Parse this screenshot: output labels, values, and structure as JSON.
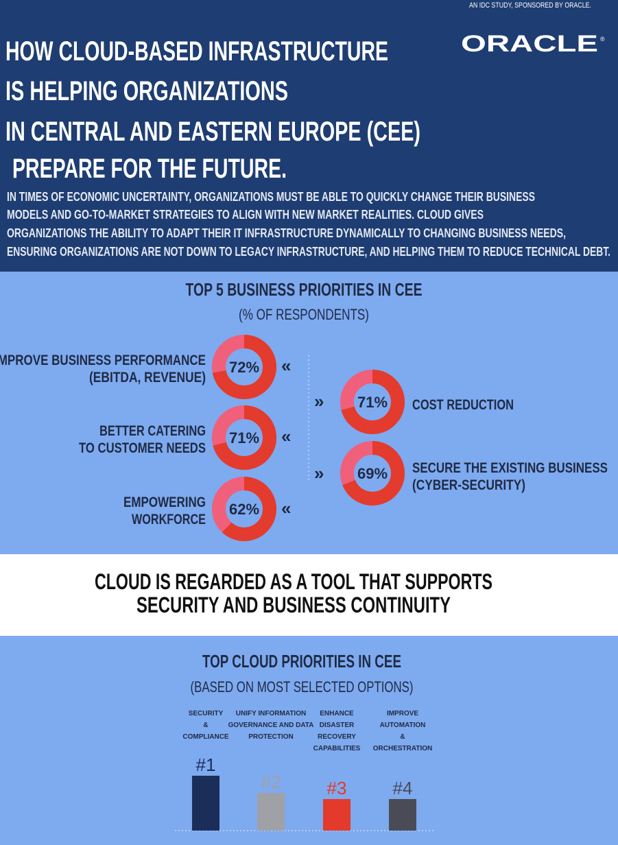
{
  "header": {
    "tagline": "AN IDC STUDY, SPONSORED BY ORACLE.",
    "logo": "ORACLE",
    "title_lines": [
      "HOW CLOUD-BASED INFRASTRUCTURE",
      "IS HELPING ORGANIZATIONS",
      "IN CENTRAL AND EASTERN EUROPE (CEE)",
      "PREPARE FOR THE FUTURE."
    ],
    "intro_lines": [
      "IN TIMES OF ECONOMIC UNCERTAINTY, ORGANIZATIONS MUST BE ABLE TO QUICKLY CHANGE THEIR BUSINESS",
      "MODELS AND  GO-TO-MARKET STRATEGIES TO ALIGN WITH NEW MARKET REALITIES. CLOUD GIVES",
      "ORGANIZATIONS THE ABILITY TO ADAPT  THEIR IT INFRASTRUCTURE DYNAMICALLY TO CHANGING BUSINESS NEEDS,",
      "ENSURING ORGANIZATIONS ARE NOT DOWN TO LEGACY INFRASTRUCTURE, AND HELPING THEM TO REDUCE TECHNICAL DEBT."
    ]
  },
  "business_priorities": {
    "title": "TOP 5 BUSINESS PRIORITIES IN CEE",
    "subtitle": "(% OF RESPONDENTS)",
    "items": [
      {
        "label_lines": [
          "IMPROVE BUSINESS PERFORMANCE",
          "(EBITDA, REVENUE)"
        ],
        "value": 72,
        "value_label": "72%"
      },
      {
        "label_lines": [
          "BETTER CATERING",
          "TO CUSTOMER NEEDS"
        ],
        "value": 71,
        "value_label": "71%"
      },
      {
        "label_lines": [
          "EMPOWERING",
          "WORKFORCE"
        ],
        "value": 62,
        "value_label": "62%"
      },
      {
        "label_lines": [
          "COST REDUCTION"
        ],
        "value": 71,
        "value_label": "71%"
      },
      {
        "label_lines": [
          "SECURE THE EXISTING BUSINESS",
          "(CYBER-SECURITY)"
        ],
        "value": 69,
        "value_label": "69%"
      }
    ]
  },
  "statement_lines": [
    "CLOUD IS REGARDED AS A TOOL THAT SUPPORTS",
    "SECURITY AND BUSINESS CONTINUITY"
  ],
  "cloud_priorities": {
    "title": "TOP CLOUD PRIORITIES IN CEE",
    "subtitle": "(BASED ON MOST SELECTED OPTIONS)",
    "items": [
      {
        "label_lines": [
          "SECURITY",
          "&",
          "COMPLIANCE"
        ],
        "rank": "#1"
      },
      {
        "label_lines": [
          "UNIFY INFORMATION",
          "GOVERNANCE AND DATA",
          "PROTECTION"
        ],
        "rank": "#2"
      },
      {
        "label_lines": [
          "ENHANCE",
          "DISASTER",
          "RECOVERY",
          "CAPABILITIES"
        ],
        "rank": "#3"
      },
      {
        "label_lines": [
          "IMPROVE",
          "AUTOMATION",
          "&",
          "ORCHESTRATION"
        ],
        "rank": "#4"
      }
    ]
  }
}
